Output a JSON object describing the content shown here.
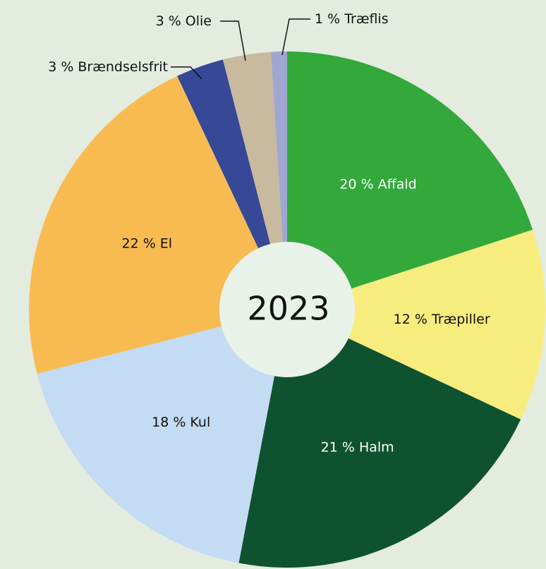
{
  "chart_data": {
    "type": "pie",
    "title": "2023",
    "categories": [
      "Affald",
      "Træpiller",
      "Halm",
      "Kul",
      "El",
      "Brændselsfrit",
      "Olie",
      "Træflis"
    ],
    "values": [
      20,
      12,
      21,
      18,
      22,
      3,
      3,
      1
    ],
    "value_labels": [
      "20 %",
      "12 %",
      "21 %",
      "18 %",
      "22 %",
      "3 %",
      "3 %",
      "1 %"
    ],
    "colors": [
      "#33a83b",
      "#f7ec7e",
      "#0f5230",
      "#c3dbf3",
      "#f8bb52",
      "#364896",
      "#c9b99e",
      "#9fa7d1"
    ]
  }
}
